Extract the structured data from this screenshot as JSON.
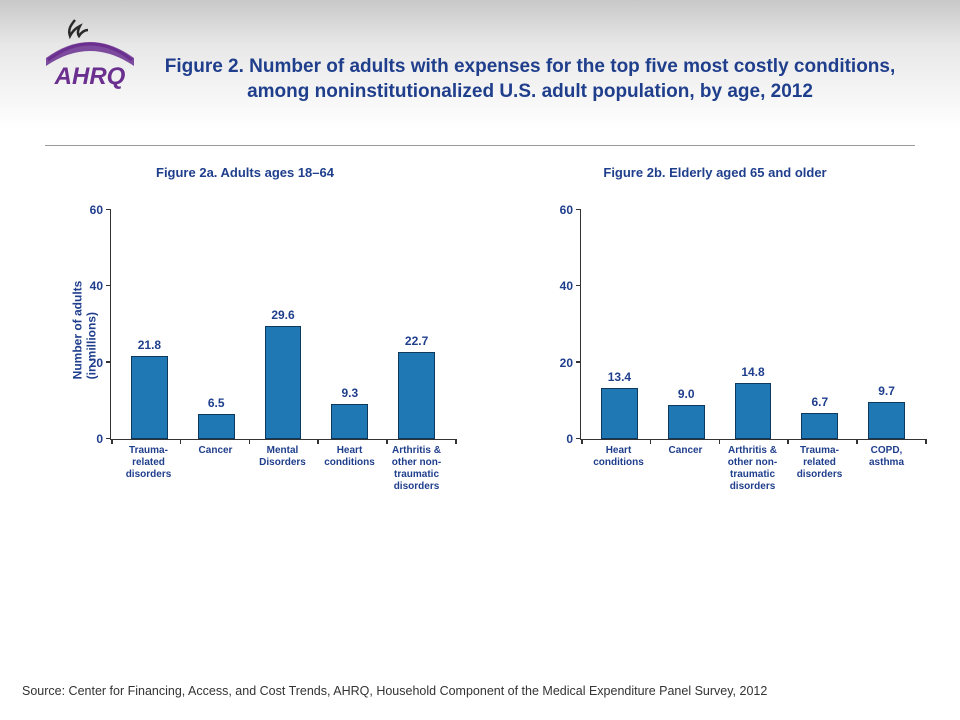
{
  "title": "Figure 2. Number of adults with expenses for the top five most costly conditions, among noninstitutionalized U.S. adult population, by age, 2012",
  "logo_text": "AHRQ",
  "y_axis_label": "Number of adults\n(in millions)",
  "chart_a": {
    "type": "bar",
    "subtitle": "Figure 2a. Adults ages 18–64",
    "ylim": [
      0,
      60
    ],
    "ytick_step": 20,
    "categories": [
      "Trauma-\nrelated\ndisorders",
      "Cancer",
      "Mental\nDisorders",
      "Heart\nconditions",
      "Arthritis &\nother non-\ntraumatic\ndisorders"
    ],
    "values": [
      21.8,
      6.5,
      29.6,
      9.3,
      22.7
    ],
    "bar_color": "#1f77b4",
    "bar_border": "#0d3a5c",
    "text_color": "#1f3e8c",
    "bar_width": 0.55
  },
  "chart_b": {
    "type": "bar",
    "subtitle": "Figure 2b. Elderly aged 65 and older",
    "ylim": [
      0,
      60
    ],
    "ytick_step": 20,
    "categories": [
      "Heart\nconditions",
      "Cancer",
      "Arthritis &\nother non-\ntraumatic\ndisorders",
      "Trauma-\nrelated\ndisorders",
      "COPD, asthma"
    ],
    "values": [
      13.4,
      9.0,
      14.8,
      6.7,
      9.7
    ],
    "bar_color": "#1f77b4",
    "bar_border": "#0d3a5c",
    "text_color": "#1f3e8c",
    "bar_width": 0.55
  },
  "source": "Source: Center for Financing, Access, and Cost Trends, AHRQ, Household Component of the Medical Expenditure Panel Survey, 2012",
  "colors": {
    "title": "#1f3e8c",
    "band_top": "#c8c8c8",
    "band_bottom": "#ffffff",
    "axis": "#333333",
    "logo_purple": "#6a2f8f",
    "logo_dark": "#2a2a2a"
  },
  "typography": {
    "title_fontsize": 19,
    "subtitle_fontsize": 13,
    "axis_label_fontsize": 12,
    "value_fontsize": 12,
    "category_fontsize": 10,
    "source_fontsize": 12.5
  }
}
